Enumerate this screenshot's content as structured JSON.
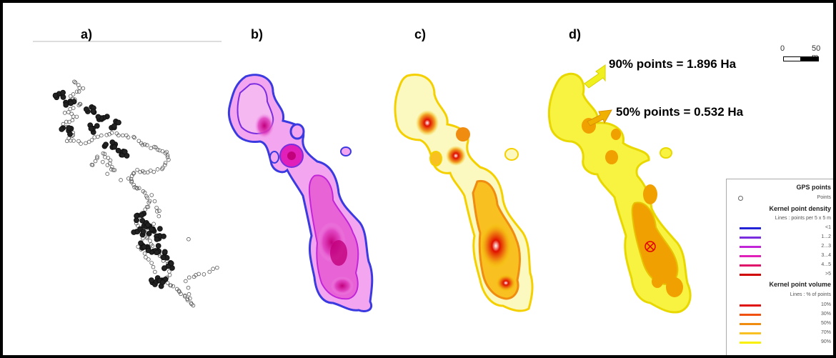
{
  "panels": {
    "a": "a)",
    "b": "b)",
    "c": "c)",
    "d": "d)"
  },
  "callouts": {
    "ninety": "90% points = 1.896 Ha",
    "fifty": "50% points = 0.532 Ha"
  },
  "scale_bar": {
    "start": "0",
    "end": "50 m"
  },
  "legend": {
    "gps_title": "GPS points",
    "gps_item": "Points",
    "density_title": "Kernel point density",
    "density_sub": "Lines : points per 5 x 5 m",
    "density_classes": [
      "<1",
      "1...2",
      "2...3",
      "3...4",
      "4...5",
      ">5"
    ],
    "density_colors": [
      "#2323d8",
      "#7a2ee0",
      "#c226d8",
      "#e020b8",
      "#e0106a",
      "#d00000"
    ],
    "volume_title": "Kernel point volume",
    "volume_sub": "Lines : % of points",
    "volume_classes": [
      "10%",
      "30%",
      "50%",
      "70%",
      "90%"
    ],
    "volume_colors": [
      "#e01010",
      "#f05010",
      "#f08c10",
      "#f8c020",
      "#f8f000"
    ]
  },
  "colors": {
    "density_fill": "#f3a6ef",
    "density_dark": "#c2007c",
    "heat_hot": "#e01000",
    "heat_warm": "#f5d000",
    "area_90": "#f8f240",
    "area_50": "#f0a000",
    "arrow_90": "#f0f020",
    "arrow_50": "#f0b000"
  },
  "icons": {
    "centroid": "circled-cross-icon"
  }
}
